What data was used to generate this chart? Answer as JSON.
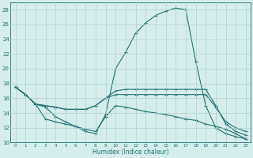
{
  "xlabel": "Humidex (Indice chaleur)",
  "xlim": [
    -0.5,
    23.5
  ],
  "ylim": [
    10,
    29
  ],
  "yticks": [
    10,
    12,
    14,
    16,
    18,
    20,
    22,
    24,
    26,
    28
  ],
  "xticks": [
    0,
    1,
    2,
    3,
    4,
    5,
    6,
    7,
    8,
    9,
    10,
    11,
    12,
    13,
    14,
    15,
    16,
    17,
    18,
    19,
    20,
    21,
    22,
    23
  ],
  "bg_color": "#d5eeec",
  "grid_color": "#aed0ce",
  "line_color": "#1e7272",
  "lines": [
    {
      "x": [
        0,
        1,
        2,
        3,
        4,
        5,
        6,
        7,
        8,
        9,
        10,
        11,
        12,
        13,
        14,
        15,
        16,
        17,
        18,
        19,
        20,
        21,
        22,
        23
      ],
      "y": [
        17.5,
        16.5,
        15.2,
        14.8,
        13.5,
        12.8,
        12.2,
        11.5,
        11.2,
        13.8,
        20.0,
        22.2,
        24.8,
        26.2,
        27.2,
        27.8,
        28.2,
        28.0,
        21.0,
        15.0,
        12.0,
        11.2,
        10.8,
        10.5
      ]
    },
    {
      "x": [
        0,
        1,
        2,
        3,
        4,
        5,
        6,
        7,
        8,
        9,
        10,
        11,
        12,
        13,
        14,
        15,
        16,
        17,
        18,
        19,
        20,
        21,
        22,
        23
      ],
      "y": [
        17.5,
        16.5,
        15.2,
        15.0,
        14.8,
        14.5,
        14.5,
        14.5,
        15.0,
        16.0,
        17.0,
        17.2,
        17.2,
        17.2,
        17.2,
        17.2,
        17.2,
        17.2,
        17.2,
        17.2,
        15.0,
        12.5,
        11.5,
        11.0
      ]
    },
    {
      "x": [
        0,
        1,
        2,
        3,
        4,
        5,
        6,
        7,
        8,
        9,
        10,
        11,
        12,
        13,
        14,
        15,
        16,
        17,
        18,
        19,
        20,
        21,
        22,
        23
      ],
      "y": [
        17.5,
        16.5,
        15.2,
        15.0,
        14.8,
        14.5,
        14.5,
        14.5,
        15.0,
        16.0,
        16.5,
        16.5,
        16.5,
        16.5,
        16.5,
        16.5,
        16.5,
        16.5,
        16.5,
        16.5,
        14.8,
        12.8,
        12.0,
        11.5
      ]
    },
    {
      "x": [
        0,
        1,
        2,
        3,
        4,
        5,
        6,
        7,
        8,
        9,
        10,
        11,
        12,
        13,
        14,
        15,
        16,
        17,
        18,
        19,
        20,
        21,
        22,
        23
      ],
      "y": [
        17.5,
        16.5,
        15.2,
        13.2,
        12.8,
        12.5,
        12.2,
        11.8,
        11.5,
        13.5,
        15.0,
        14.8,
        14.5,
        14.2,
        14.0,
        13.8,
        13.5,
        13.2,
        13.0,
        12.5,
        12.2,
        11.8,
        11.2,
        10.5
      ]
    }
  ]
}
